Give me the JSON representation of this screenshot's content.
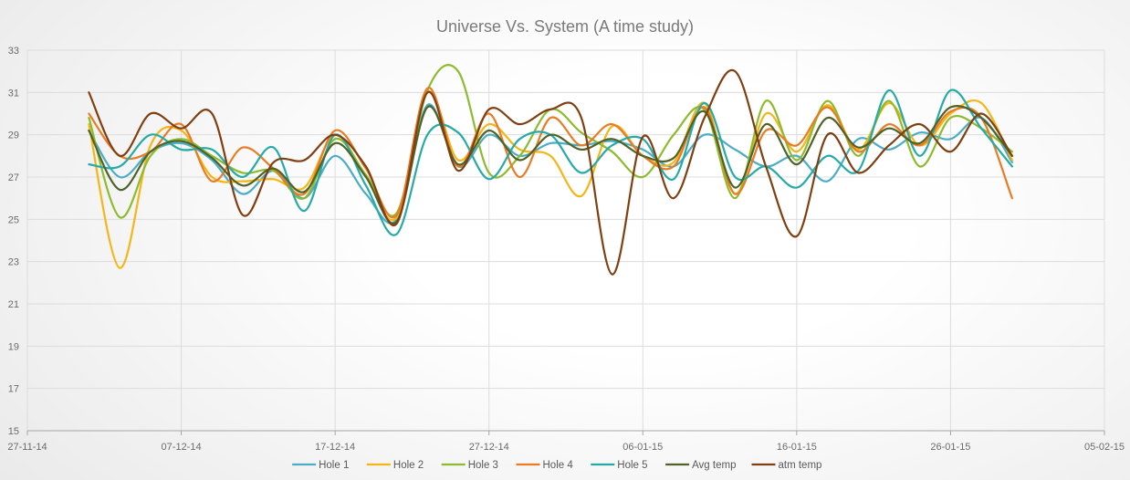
{
  "chart_data": {
    "type": "line",
    "title": "Universe Vs. System (A time study)",
    "xlabel": "",
    "ylabel": "",
    "x_ticks": [
      "27-11-14",
      "07-12-14",
      "17-12-14",
      "27-12-14",
      "06-01-15",
      "16-01-15",
      "26-01-15",
      "05-02-15"
    ],
    "xlim": [
      "2014-11-27",
      "2015-02-05"
    ],
    "ylim": [
      15,
      33
    ],
    "y_ticks": [
      15,
      17,
      19,
      21,
      23,
      25,
      27,
      29,
      31,
      33
    ],
    "grid": true,
    "legend_position": "bottom",
    "x": [
      "2014-12-01",
      "2014-12-03",
      "2014-12-05",
      "2014-12-07",
      "2014-12-09",
      "2014-12-11",
      "2014-12-13",
      "2014-12-15",
      "2014-12-17",
      "2014-12-19",
      "2014-12-21",
      "2014-12-23",
      "2014-12-25",
      "2014-12-27",
      "2014-12-29",
      "2014-12-31",
      "2015-01-02",
      "2015-01-04",
      "2015-01-06",
      "2015-01-08",
      "2015-01-10",
      "2015-01-12",
      "2015-01-14",
      "2015-01-16",
      "2015-01-18",
      "2015-01-20",
      "2015-01-22",
      "2015-01-24",
      "2015-01-26",
      "2015-01-28",
      "2015-01-30"
    ],
    "series": [
      {
        "name": "Hole 1",
        "color": "#4bacc6",
        "values": [
          29.2,
          27.0,
          28.2,
          28.6,
          27.8,
          26.2,
          27.3,
          26.0,
          28.0,
          26.2,
          25.0,
          30.4,
          27.5,
          29.0,
          28.0,
          28.6,
          28.5,
          28.7,
          28.3,
          27.5,
          29.0,
          28.3,
          27.5,
          28.0,
          26.8,
          28.8,
          28.3,
          29.1,
          28.8,
          29.8,
          27.7
        ]
      },
      {
        "name": "Hole 2",
        "color": "#f5b517",
        "values": [
          29.5,
          22.7,
          28.5,
          29.2,
          27.0,
          26.8,
          26.9,
          26.5,
          29.0,
          27.0,
          25.1,
          31.0,
          27.8,
          29.5,
          28.3,
          28.0,
          26.1,
          29.4,
          28.0,
          27.7,
          30.5,
          26.2,
          30.0,
          28.2,
          30.4,
          28.3,
          30.5,
          28.5,
          30.0,
          30.5,
          27.8
        ]
      },
      {
        "name": "Hole 3",
        "color": "#8dbb2d",
        "values": [
          29.8,
          25.1,
          28.0,
          28.8,
          28.0,
          27.2,
          27.3,
          26.0,
          28.8,
          27.1,
          25.3,
          31.1,
          32.0,
          27.2,
          28.0,
          30.2,
          29.1,
          28.2,
          27.0,
          29.0,
          30.2,
          26.0,
          30.6,
          27.8,
          30.6,
          28.0,
          30.6,
          27.5,
          29.8,
          29.3,
          28.2
        ]
      },
      {
        "name": "Hole 4",
        "color": "#e97b24",
        "values": [
          30.0,
          28.0,
          28.2,
          29.5,
          26.8,
          28.4,
          27.4,
          26.2,
          29.2,
          27.4,
          25.2,
          31.2,
          27.5,
          30.0,
          27.0,
          29.8,
          28.5,
          29.5,
          28.0,
          27.5,
          30.3,
          26.2,
          29.2,
          28.5,
          30.3,
          28.2,
          29.5,
          28.5,
          30.1,
          29.8,
          26.0
        ]
      },
      {
        "name": "Hole 5",
        "color": "#26aaa8",
        "values": [
          27.6,
          27.5,
          29.0,
          28.3,
          28.3,
          27.0,
          28.4,
          25.4,
          29.0,
          26.6,
          24.3,
          29.0,
          29.1,
          26.9,
          28.8,
          29.0,
          27.2,
          28.5,
          28.8,
          26.9,
          30.5,
          27.0,
          27.5,
          26.5,
          28.0,
          27.3,
          31.1,
          28.0,
          31.1,
          29.3,
          27.5
        ]
      },
      {
        "name": "Avg temp",
        "color": "#4f6228",
        "values": [
          29.2,
          26.4,
          28.2,
          28.7,
          27.9,
          26.6,
          27.4,
          26.3,
          28.6,
          27.0,
          24.9,
          30.3,
          27.6,
          29.2,
          27.8,
          29.0,
          28.3,
          28.8,
          28.0,
          27.9,
          30.1,
          26.5,
          29.5,
          27.6,
          29.8,
          28.4,
          29.3,
          28.6,
          30.3,
          29.8,
          28.0
        ]
      },
      {
        "name": "atm temp",
        "color": "#7f3f10",
        "values": [
          31.0,
          28.0,
          30.0,
          29.3,
          30.0,
          25.2,
          27.7,
          27.8,
          29.0,
          27.5,
          24.8,
          31.0,
          27.3,
          30.2,
          29.5,
          30.2,
          29.8,
          22.4,
          28.9,
          26.0,
          29.8,
          32.0,
          27.5,
          24.2,
          29.0,
          27.2,
          28.5,
          29.5,
          28.2,
          30.0,
          28.0
        ]
      }
    ]
  }
}
